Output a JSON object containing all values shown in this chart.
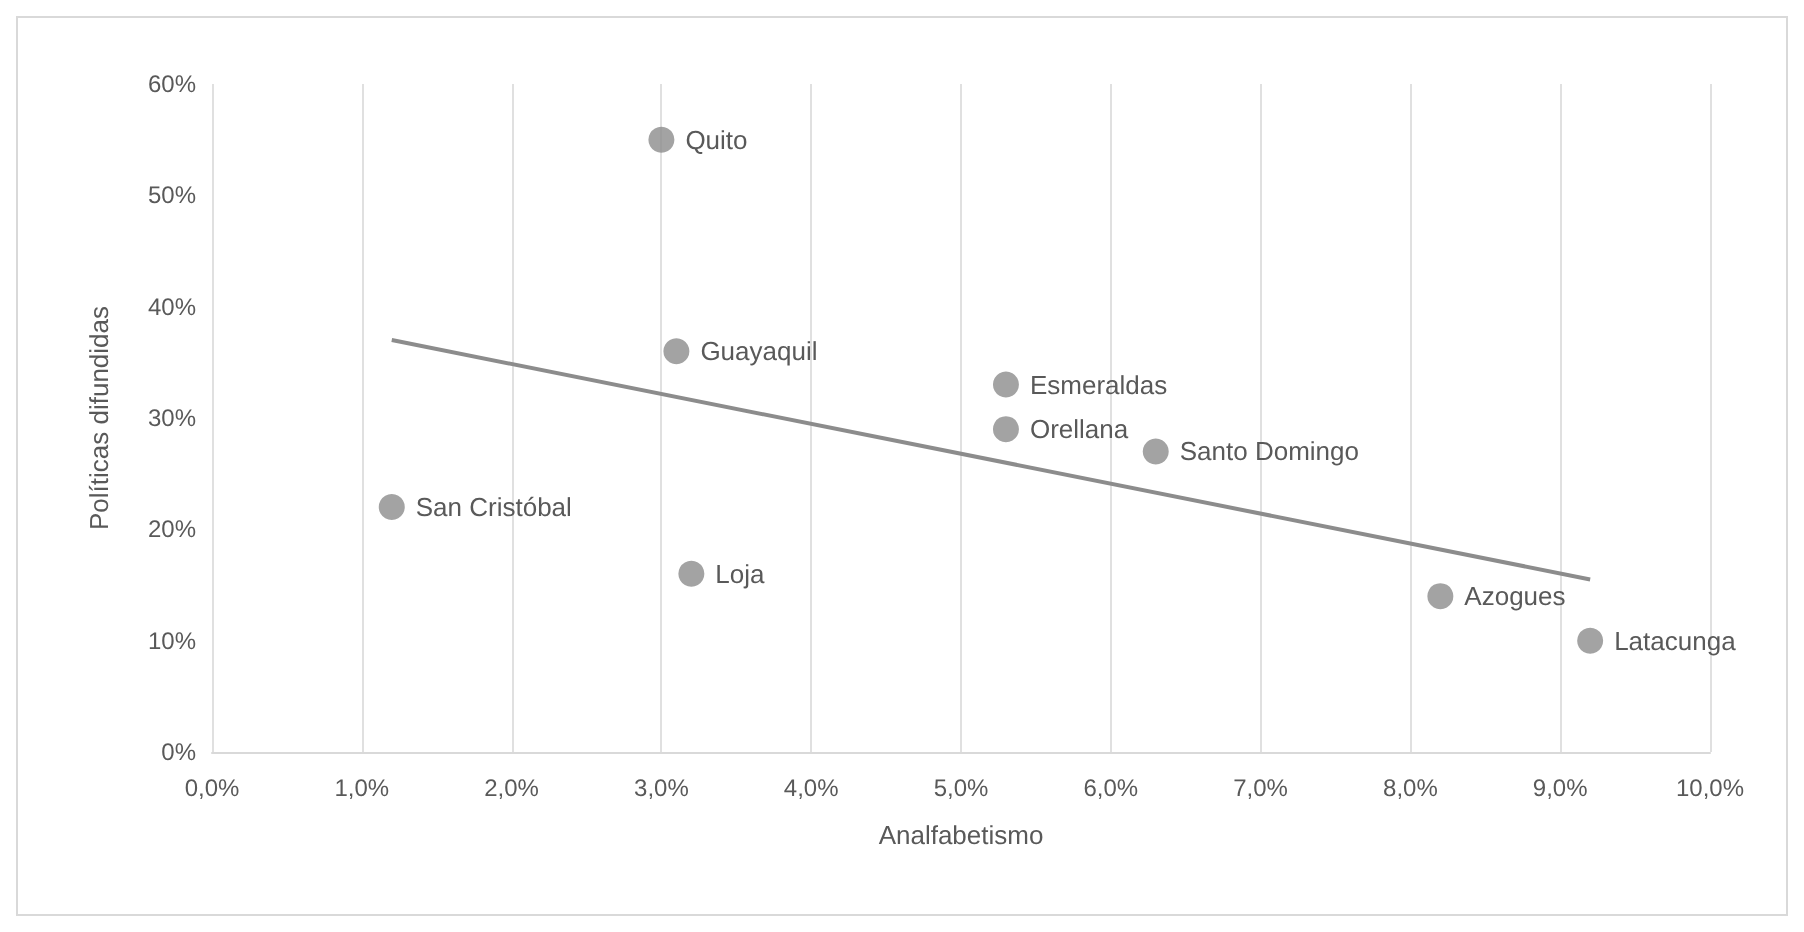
{
  "chart_data": {
    "type": "scatter",
    "xlabel": "Analfabetismo",
    "ylabel": "Políticas difundidas",
    "x": [
      3.0,
      3.1,
      5.3,
      5.3,
      6.3,
      1.2,
      3.2,
      8.2,
      9.2
    ],
    "series": [
      {
        "color": "#8c8c8c",
        "values": [
          55,
          36,
          33,
          29,
          27,
          22,
          16,
          14,
          10
        ]
      },
      {
        "type": "line",
        "color": "#8c8c8c",
        "x": [
          1.2,
          9.2
        ],
        "values": [
          37,
          15.5
        ],
        "marker": "none"
      }
    ],
    "marker": "circle",
    "annotations": [
      {
        "text": "Quito",
        "x": 3.0,
        "y": 55
      },
      {
        "text": "Guayaquil",
        "x": 3.1,
        "y": 36
      },
      {
        "text": "Esmeraldas",
        "x": 5.3,
        "y": 33
      },
      {
        "text": "Orellana",
        "x": 5.3,
        "y": 29
      },
      {
        "text": "Santo Domingo",
        "x": 6.3,
        "y": 27
      },
      {
        "text": "San Cristóbal",
        "x": 1.2,
        "y": 22
      },
      {
        "text": "Loja",
        "x": 3.2,
        "y": 16
      },
      {
        "text": "Azogues",
        "x": 8.2,
        "y": 14
      },
      {
        "text": "Latacunga",
        "x": 9.2,
        "y": 10
      }
    ],
    "xlim": [
      0,
      10
    ],
    "xticks": [
      {
        "value": 0,
        "label": "0,0%"
      },
      {
        "value": 1,
        "label": "1,0%"
      },
      {
        "value": 2,
        "label": "2,0%"
      },
      {
        "value": 3,
        "label": "3,0%"
      },
      {
        "value": 4,
        "label": "4,0%"
      },
      {
        "value": 5,
        "label": "5,0%"
      },
      {
        "value": 6,
        "label": "6,0%"
      },
      {
        "value": 7,
        "label": "7,0%"
      },
      {
        "value": 8,
        "label": "8,0%"
      },
      {
        "value": 9,
        "label": "9,0%"
      },
      {
        "value": 10,
        "label": "10,0%"
      }
    ],
    "ylim": [
      0,
      60
    ],
    "yticks": [
      {
        "value": 0,
        "label": "0%"
      },
      {
        "value": 10,
        "label": "10%"
      },
      {
        "value": 20,
        "label": "20%"
      },
      {
        "value": 30,
        "label": "30%"
      },
      {
        "value": 40,
        "label": "40%"
      },
      {
        "value": 50,
        "label": "50%"
      },
      {
        "value": 60,
        "label": "60%"
      }
    ],
    "grid": "x"
  }
}
